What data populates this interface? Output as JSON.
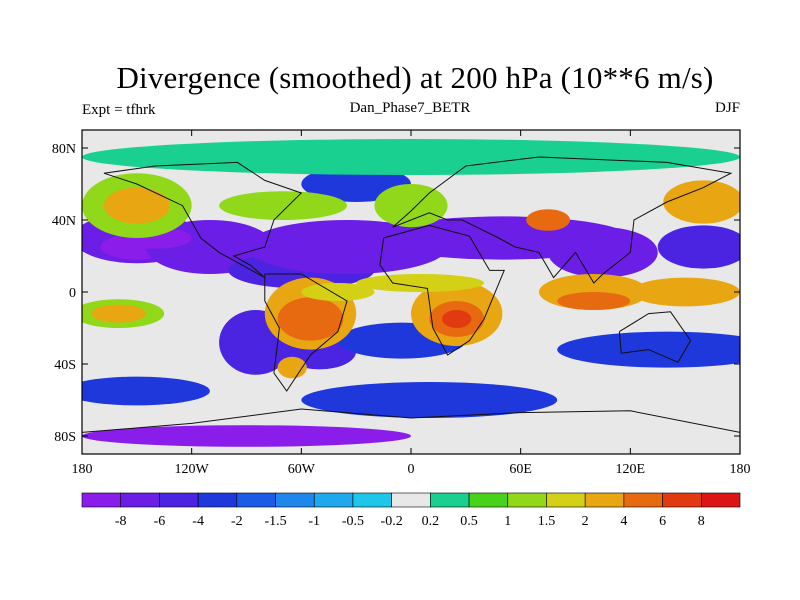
{
  "chart_data": {
    "type": "heatmap",
    "title": "Divergence (smoothed) at 200 hPa (10**6 m/s)",
    "left_label": "Expt = tfhrk",
    "center_label": "Dan_Phase7_BETR",
    "right_label": "DJF",
    "x_ticks": [
      "180",
      "120W",
      "60W",
      "0",
      "60E",
      "120E",
      "180"
    ],
    "y_ticks": [
      "80N",
      "40N",
      "0",
      "40S",
      "80S"
    ],
    "lon_range": [
      -180,
      180
    ],
    "lat_range": [
      -90,
      90
    ],
    "colorbar": {
      "labels": [
        "-8",
        "-6",
        "-4",
        "-2",
        "-1.5",
        "-1",
        "-0.5",
        "-0.2",
        "0.2",
        "0.5",
        "1",
        "1.5",
        "2",
        "4",
        "6",
        "8"
      ],
      "colors": [
        "#8a1dea",
        "#6a1ee6",
        "#4b24e2",
        "#1e38dc",
        "#1b5ce6",
        "#1f86ec",
        "#1fa8ec",
        "#1ec6ea",
        "#e8e8e8",
        "#19d090",
        "#49d21a",
        "#92d81a",
        "#d4d016",
        "#e7a612",
        "#e76a10",
        "#e23a10",
        "#dc1414"
      ]
    },
    "regions": [
      {
        "lon": -150,
        "lat": 30,
        "rx": 35,
        "ry": 14,
        "level": 1
      },
      {
        "lon": -150,
        "lat": 25,
        "rx": 20,
        "ry": 7,
        "level": 0
      },
      {
        "lon": -110,
        "lat": 25,
        "rx": 35,
        "ry": 15,
        "level": 1
      },
      {
        "lon": -60,
        "lat": 12,
        "rx": 40,
        "ry": 10,
        "level": 2
      },
      {
        "lon": -35,
        "lat": 25,
        "rx": 55,
        "ry": 15,
        "level": 1
      },
      {
        "lon": 50,
        "lat": 30,
        "rx": 70,
        "ry": 12,
        "level": 1
      },
      {
        "lon": 105,
        "lat": 22,
        "rx": 30,
        "ry": 14,
        "level": 1
      },
      {
        "lon": 160,
        "lat": 25,
        "rx": 25,
        "ry": 12,
        "level": 2
      },
      {
        "lon": -85,
        "lat": -28,
        "rx": 20,
        "ry": 18,
        "level": 2
      },
      {
        "lon": -50,
        "lat": -33,
        "rx": 20,
        "ry": 10,
        "level": 2
      },
      {
        "lon": -5,
        "lat": -27,
        "rx": 35,
        "ry": 10,
        "level": 3
      },
      {
        "lon": 10,
        "lat": -60,
        "rx": 70,
        "ry": 10,
        "level": 3
      },
      {
        "lon": 140,
        "lat": -32,
        "rx": 60,
        "ry": 10,
        "level": 3
      },
      {
        "lon": -150,
        "lat": -55,
        "rx": 40,
        "ry": 8,
        "level": 3
      },
      {
        "lon": -30,
        "lat": 60,
        "rx": 30,
        "ry": 10,
        "level": 3
      },
      {
        "lon": -140,
        "lat": 30,
        "rx": 20,
        "ry": 6,
        "level": 0
      },
      {
        "lon": -150,
        "lat": 48,
        "rx": 30,
        "ry": 18,
        "level": 11
      },
      {
        "lon": -150,
        "lat": 48,
        "rx": 18,
        "ry": 10,
        "level": 13
      },
      {
        "lon": -70,
        "lat": 48,
        "rx": 35,
        "ry": 8,
        "level": 11
      },
      {
        "lon": 0,
        "lat": 48,
        "rx": 20,
        "ry": 12,
        "level": 11
      },
      {
        "lon": 75,
        "lat": 40,
        "rx": 12,
        "ry": 6,
        "level": 14
      },
      {
        "lon": 160,
        "lat": 50,
        "rx": 22,
        "ry": 12,
        "level": 13
      },
      {
        "lon": -160,
        "lat": -12,
        "rx": 25,
        "ry": 8,
        "level": 11
      },
      {
        "lon": -160,
        "lat": -12,
        "rx": 15,
        "ry": 5,
        "level": 13
      },
      {
        "lon": 100,
        "lat": 0,
        "rx": 30,
        "ry": 10,
        "level": 13
      },
      {
        "lon": 150,
        "lat": 0,
        "rx": 30,
        "ry": 8,
        "level": 13
      },
      {
        "lon": 100,
        "lat": -5,
        "rx": 20,
        "ry": 5,
        "level": 14
      },
      {
        "lon": -55,
        "lat": -12,
        "rx": 25,
        "ry": 20,
        "level": 13
      },
      {
        "lon": -55,
        "lat": -15,
        "rx": 18,
        "ry": 12,
        "level": 14
      },
      {
        "lon": 25,
        "lat": -12,
        "rx": 25,
        "ry": 18,
        "level": 13
      },
      {
        "lon": 25,
        "lat": -15,
        "rx": 15,
        "ry": 10,
        "level": 14
      },
      {
        "lon": 25,
        "lat": -15,
        "rx": 8,
        "ry": 5,
        "level": 15
      },
      {
        "lon": 5,
        "lat": 5,
        "rx": 35,
        "ry": 5,
        "level": 12
      },
      {
        "lon": -40,
        "lat": 0,
        "rx": 20,
        "ry": 5,
        "level": 12
      },
      {
        "lon": -65,
        "lat": -42,
        "rx": 8,
        "ry": 6,
        "level": 13
      },
      {
        "lon": -90,
        "lat": -80,
        "rx": 90,
        "ry": 6,
        "level": 0
      },
      {
        "lon": 0,
        "lat": 75,
        "rx": 180,
        "ry": 10,
        "level": 9
      }
    ]
  },
  "colors": {
    "ocean": "#e8e8e8",
    "coast": "#111111",
    "frame": "#000000"
  }
}
